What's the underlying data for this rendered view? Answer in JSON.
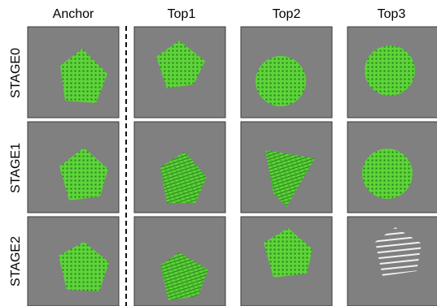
{
  "columns": [
    "Anchor",
    "Top1",
    "Top2",
    "Top3"
  ],
  "rows": [
    "STAGE0",
    "STAGE1",
    "STAGE2"
  ],
  "colors": {
    "panel_bg": "#808080",
    "panel_border": "#3a3a3a",
    "shape_fill": "#5ed43a",
    "shape_dots": "#2f8f1e",
    "stripe_color": "#ffffff",
    "divider": "#111111"
  },
  "grid": [
    [
      {
        "shape": "pentagon",
        "texture": "dots"
      },
      {
        "shape": "pentagon",
        "texture": "dots"
      },
      {
        "shape": "circle",
        "texture": "dots"
      },
      {
        "shape": "circle",
        "texture": "dots"
      }
    ],
    [
      {
        "shape": "pentagon",
        "texture": "dots"
      },
      {
        "shape": "pentagon",
        "texture": "stripes"
      },
      {
        "shape": "quadrilateral",
        "texture": "stripes"
      },
      {
        "shape": "circle",
        "texture": "dots"
      }
    ],
    [
      {
        "shape": "pentagon",
        "texture": "dots"
      },
      {
        "shape": "pentagon",
        "texture": "stripes"
      },
      {
        "shape": "pentagon",
        "texture": "dots"
      },
      {
        "shape": "pentagon",
        "texture": "white-stripes"
      }
    ]
  ]
}
